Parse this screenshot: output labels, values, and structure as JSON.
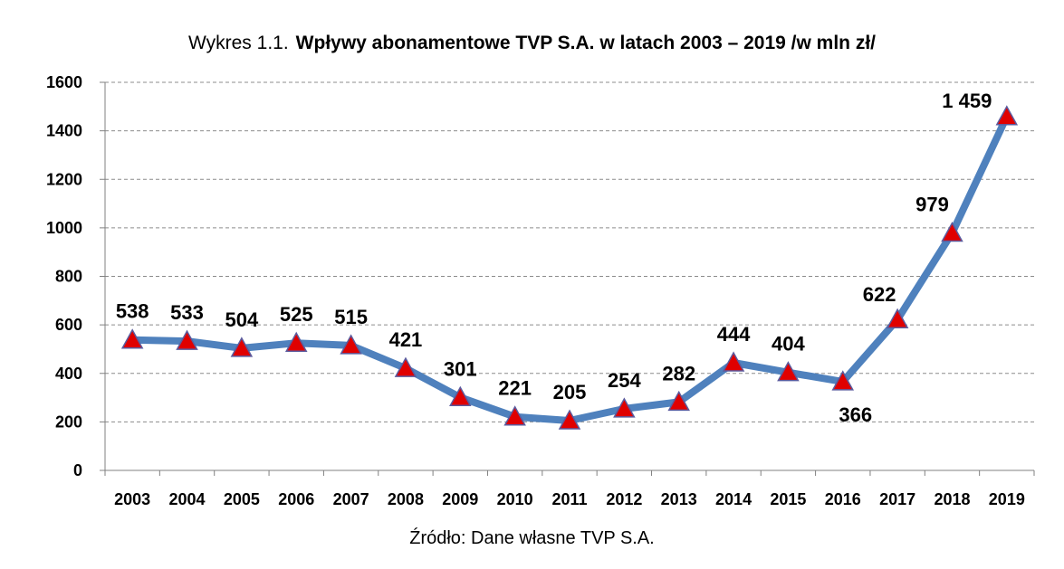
{
  "header": {
    "title_prefix": "Wykres 1.1.",
    "title_main": "Wpływy abonamentowe TVP S.A. w latach 2003 – 2019 /w mln zł/"
  },
  "footer": {
    "source": "Źródło: Dane własne TVP S.A."
  },
  "chart_data": {
    "type": "line",
    "title": "Wpływy abonamentowe TVP S.A. w latach 2003 – 2019 /w mln zł/",
    "xlabel": "",
    "ylabel": "",
    "categories": [
      "2003",
      "2004",
      "2005",
      "2006",
      "2007",
      "2008",
      "2009",
      "2010",
      "2011",
      "2012",
      "2013",
      "2014",
      "2015",
      "2016",
      "2017",
      "2018",
      "2019"
    ],
    "series": [
      {
        "values": [
          538,
          533,
          504,
          525,
          515,
          421,
          301,
          221,
          205,
          254,
          282,
          444,
          404,
          366,
          622,
          979,
          1459
        ],
        "labels": [
          "538",
          "533",
          "504",
          "525",
          "515",
          "421",
          "301",
          "221",
          "205",
          "254",
          "282",
          "444",
          "404",
          "366",
          "622",
          "979",
          "1 459"
        ]
      }
    ],
    "ylim": [
      0,
      1600
    ],
    "yticks": [
      0,
      200,
      400,
      600,
      800,
      1000,
      1200,
      1400,
      1600
    ],
    "grid": true,
    "legend": "none",
    "colors": {
      "line": "#4F81BD",
      "marker": "#E00000",
      "marker_edge": "#5B5B9E",
      "grid": "#8C8C8C",
      "axis": "#808080"
    }
  }
}
